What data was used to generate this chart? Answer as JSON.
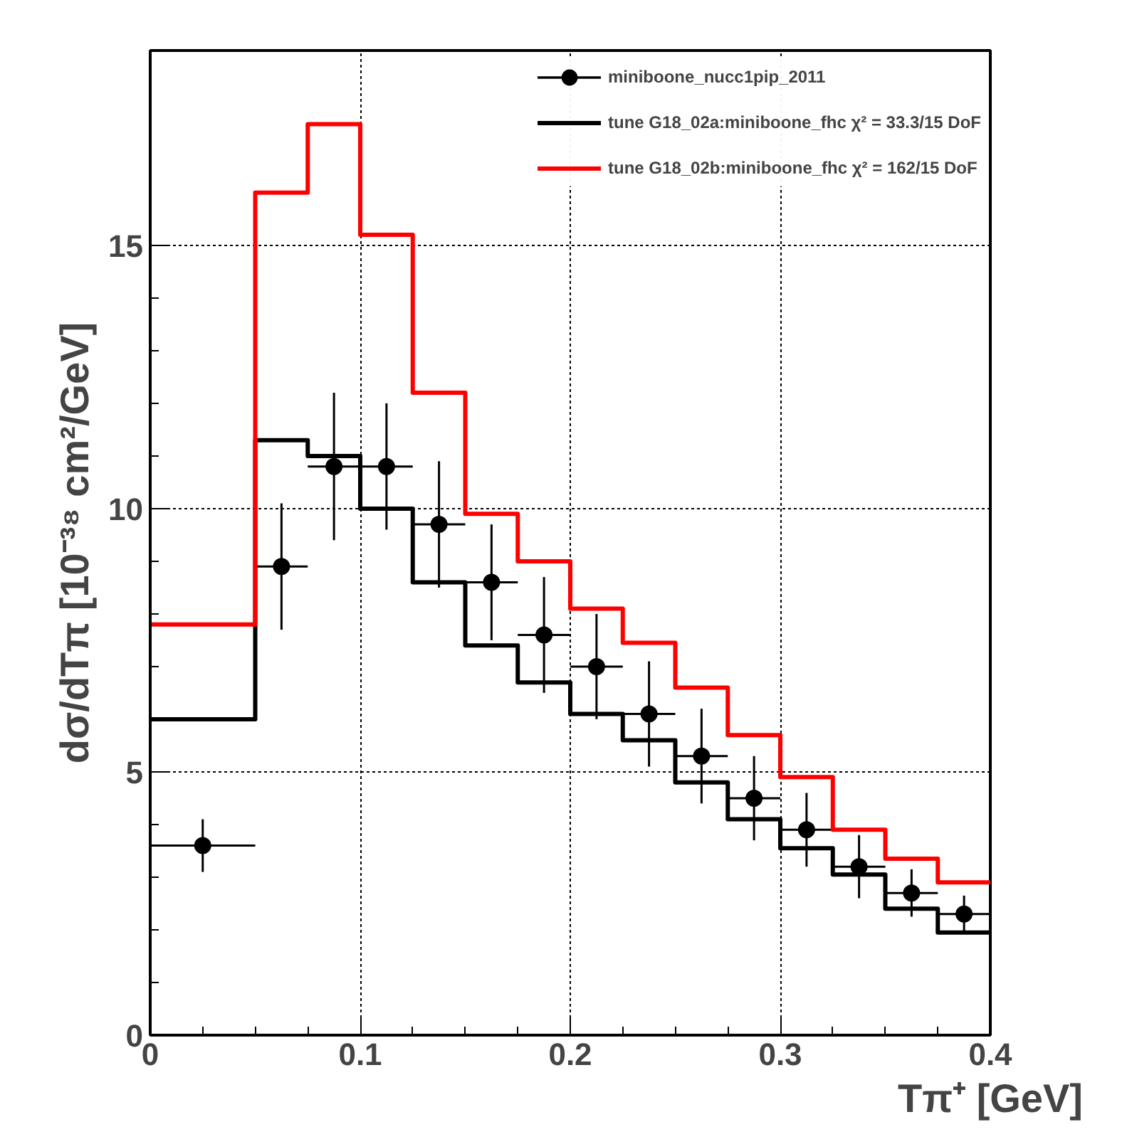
{
  "chart_data": {
    "type": "histogram",
    "xlabel": "Tπ⁺ [GeV]",
    "ylabel": "dσ/dTπ [10⁻³⁸ cm²/GeV]",
    "bins": [
      0,
      0.05,
      0.075,
      0.1,
      0.125,
      0.15,
      0.175,
      0.2,
      0.225,
      0.25,
      0.275,
      0.3,
      0.325,
      0.35,
      0.375,
      0.4
    ],
    "series": [
      {
        "type": "scatter",
        "name": "miniboone_nucc1pip_2011",
        "color": "#000000",
        "x": [
          0.025,
          0.0625,
          0.0875,
          0.1125,
          0.1375,
          0.1625,
          0.1875,
          0.2125,
          0.2375,
          0.2625,
          0.2875,
          0.3125,
          0.3375,
          0.3625,
          0.3875
        ],
        "values": [
          3.6,
          8.9,
          10.8,
          10.8,
          9.7,
          8.6,
          7.6,
          7.0,
          6.1,
          5.3,
          4.5,
          3.9,
          3.2,
          2.7,
          2.3
        ],
        "errors": [
          0.5,
          1.2,
          1.4,
          1.2,
          1.2,
          1.1,
          1.1,
          1.0,
          1.0,
          0.9,
          0.8,
          0.7,
          0.6,
          0.45,
          0.35
        ],
        "xerrors": [
          0.025,
          0.0125,
          0.0125,
          0.0125,
          0.0125,
          0.0125,
          0.0125,
          0.0125,
          0.0125,
          0.0125,
          0.0125,
          0.0125,
          0.0125,
          0.0125,
          0.0125
        ]
      },
      {
        "name": "tune G18_02a:miniboone_fhc χ² = 33.3/15 DoF",
        "color": "#000000",
        "values": [
          6.0,
          11.3,
          11.0,
          10.0,
          8.6,
          7.4,
          6.7,
          6.1,
          5.6,
          4.8,
          4.1,
          3.55,
          3.05,
          2.4,
          1.95
        ]
      },
      {
        "name": "tune G18_02b:miniboone_fhc χ² = 162/15 DoF",
        "color": "#ff0000",
        "values": [
          7.8,
          16.0,
          17.3,
          15.2,
          12.2,
          9.9,
          9.0,
          8.1,
          7.45,
          6.6,
          5.7,
          4.9,
          3.9,
          3.35,
          2.9
        ]
      }
    ],
    "xlim": [
      0,
      0.4
    ],
    "ylim": [
      0,
      18.7
    ],
    "xticks": [
      0,
      0.1,
      0.2,
      0.3,
      0.4
    ],
    "yticks": [
      0,
      5,
      10,
      15
    ],
    "grid": true,
    "legend": "top right",
    "marker": "circle",
    "line_style": "solid"
  }
}
